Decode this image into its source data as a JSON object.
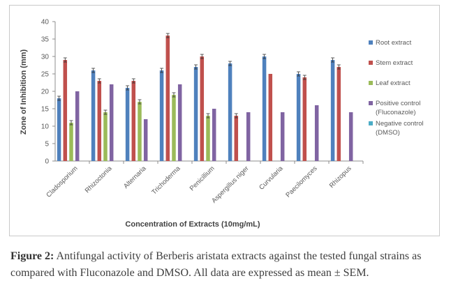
{
  "chart_data": {
    "type": "bar",
    "title": "",
    "xlabel": "Concentration of Extracts (10mg/mL)",
    "ylabel": "Zone of Inhibition (mm)",
    "ylim": [
      0,
      40
    ],
    "yticks": [
      0,
      5,
      10,
      15,
      20,
      25,
      30,
      35,
      40
    ],
    "grid": false,
    "legend_position": "right",
    "error_bars": true,
    "categories": [
      "Cladosporium",
      "Rhizoctonia",
      "Alternaria",
      "Trichoderma",
      "Penicillium",
      "Aspergillus niger",
      "Curvularia",
      "Paecilomyces",
      "Rhizopus"
    ],
    "series": [
      {
        "name": "Root extract",
        "color": "#4f81bd",
        "values": [
          18,
          26,
          21,
          26,
          27,
          28,
          30,
          25,
          29
        ],
        "errors": [
          0.6,
          0.6,
          0.6,
          0.6,
          0.6,
          0.6,
          0.6,
          0.6,
          0.6
        ]
      },
      {
        "name": "Stem extract",
        "color": "#c0504d",
        "values": [
          29,
          23,
          23,
          36,
          30,
          13,
          25,
          24,
          27
        ],
        "errors": [
          0.6,
          0.6,
          0.6,
          0.6,
          0.6,
          0.6,
          0,
          0.6,
          0.6
        ]
      },
      {
        "name": "Leaf extract",
        "color": "#9bbb59",
        "values": [
          11,
          14,
          17,
          19,
          13,
          0,
          0,
          0,
          0
        ],
        "errors": [
          0.6,
          0.6,
          0.6,
          0.6,
          0.6,
          0,
          0,
          0,
          0
        ]
      },
      {
        "name": "Positive control (Fluconazole)",
        "color": "#8064a2",
        "values": [
          20,
          22,
          12,
          22,
          15,
          14,
          14,
          16,
          14
        ],
        "errors": [
          0,
          0,
          0,
          0,
          0,
          0,
          0,
          0,
          0
        ]
      },
      {
        "name": "Negative control (DMSO)",
        "color": "#4bacc6",
        "values": [
          0,
          0,
          0,
          0,
          0,
          0,
          0,
          0,
          0
        ],
        "errors": [
          0,
          0,
          0,
          0,
          0,
          0,
          0,
          0,
          0
        ]
      }
    ],
    "legend_labels": [
      [
        "Root extract"
      ],
      [
        "Stem extract"
      ],
      [
        "Leaf extract"
      ],
      [
        "Positive control",
        "(Fluconazole)"
      ],
      [
        "Negative control",
        "(DMSO)"
      ]
    ]
  },
  "caption": {
    "lead": "Figure 2:",
    "text": " Antifungal activity of Berberis aristata extracts against the tested fungal strains as compared with Fluconazole and DMSO. All data are expressed as mean ± SEM."
  }
}
